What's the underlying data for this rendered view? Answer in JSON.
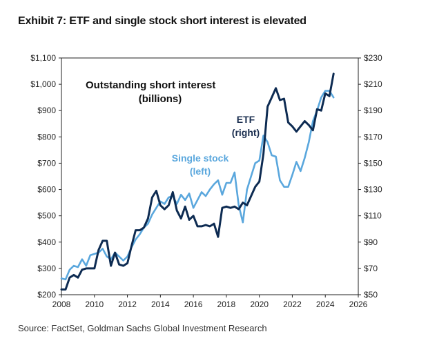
{
  "header": {
    "title": "Exhibit 7: ETF and single stock short interest is elevated"
  },
  "footer": {
    "source": "Source: FactSet, Goldman Sachs Global Investment Research"
  },
  "chart_data": {
    "type": "line",
    "title": "Outstanding short interest",
    "subtitle": "(billions)",
    "xlabel": "",
    "grid": false,
    "xlim": [
      2008,
      2026
    ],
    "x_ticks": [
      "2008",
      "2010",
      "2012",
      "2014",
      "2016",
      "2018",
      "2020",
      "2022",
      "2024",
      "2026"
    ],
    "y_left": {
      "lim": [
        200,
        1100
      ],
      "ticks": [
        "$200",
        "$300",
        "$400",
        "$500",
        "$600",
        "$700",
        "$800",
        "$900",
        "$1,000",
        "$1,100"
      ]
    },
    "y_right": {
      "lim": [
        50,
        230
      ],
      "ticks": [
        "$50",
        "$70",
        "$90",
        "$110",
        "$130",
        "$150",
        "$170",
        "$190",
        "$210",
        "$230"
      ]
    },
    "series": [
      {
        "name": "Single stock",
        "label_line1": "Single stock",
        "label_line2": "(left)",
        "axis": "left",
        "color": "#5aa7dd",
        "x": [
          2008,
          2008.25,
          2008.5,
          2008.75,
          2009,
          2009.25,
          2009.5,
          2009.75,
          2010,
          2010.25,
          2010.5,
          2010.75,
          2011,
          2011.25,
          2011.5,
          2011.75,
          2012,
          2012.25,
          2012.5,
          2012.75,
          2013,
          2013.25,
          2013.5,
          2013.75,
          2014,
          2014.25,
          2014.5,
          2014.75,
          2015,
          2015.25,
          2015.5,
          2015.75,
          2016,
          2016.25,
          2016.5,
          2016.75,
          2017,
          2017.25,
          2017.5,
          2017.75,
          2018,
          2018.25,
          2018.5,
          2018.75,
          2019,
          2019.25,
          2019.5,
          2019.75,
          2020,
          2020.25,
          2020.5,
          2020.75,
          2021,
          2021.25,
          2021.5,
          2021.75,
          2022,
          2022.25,
          2022.5,
          2022.75,
          2023,
          2023.25,
          2023.5,
          2023.75,
          2024,
          2024.25,
          2024.5
        ],
        "values": [
          262,
          258,
          295,
          310,
          305,
          335,
          310,
          350,
          355,
          360,
          375,
          345,
          335,
          360,
          345,
          330,
          345,
          380,
          410,
          430,
          455,
          470,
          505,
          530,
          555,
          545,
          570,
          575,
          545,
          580,
          560,
          585,
          530,
          560,
          590,
          575,
          600,
          620,
          635,
          580,
          625,
          625,
          665,
          540,
          475,
          600,
          650,
          700,
          710,
          805,
          780,
          730,
          725,
          635,
          610,
          610,
          655,
          705,
          670,
          720,
          780,
          860,
          900,
          950,
          975,
          975,
          950
        ]
      },
      {
        "name": "ETF",
        "label_line1": "ETF",
        "label_line2": "(right)",
        "axis": "right",
        "color": "#0d2b52",
        "x": [
          2008,
          2008.25,
          2008.5,
          2008.75,
          2009,
          2009.25,
          2009.5,
          2009.75,
          2010,
          2010.25,
          2010.5,
          2010.75,
          2011,
          2011.25,
          2011.5,
          2011.75,
          2012,
          2012.25,
          2012.5,
          2012.75,
          2013,
          2013.25,
          2013.5,
          2013.75,
          2014,
          2014.25,
          2014.5,
          2014.75,
          2015,
          2015.25,
          2015.5,
          2015.75,
          2016,
          2016.25,
          2016.5,
          2016.75,
          2017,
          2017.25,
          2017.5,
          2017.75,
          2018,
          2018.25,
          2018.5,
          2018.75,
          2019,
          2019.25,
          2019.5,
          2019.75,
          2020,
          2020.25,
          2020.5,
          2020.75,
          2021,
          2021.25,
          2021.5,
          2021.75,
          2022,
          2022.25,
          2022.5,
          2022.75,
          2023,
          2023.25,
          2023.5,
          2023.75,
          2024,
          2024.25,
          2024.5
        ],
        "values": [
          54,
          54,
          63,
          65,
          63,
          69,
          70,
          70,
          70,
          84,
          91,
          91,
          72,
          82,
          73,
          72,
          74,
          87,
          99,
          99,
          101,
          108,
          124,
          129,
          118,
          115,
          118,
          128,
          114,
          108,
          117,
          107,
          110,
          102,
          102,
          103,
          102,
          104,
          94,
          116,
          117,
          116,
          117,
          115,
          120,
          118,
          125,
          132,
          136,
          157,
          193,
          200,
          207,
          198,
          199,
          181,
          178,
          174,
          178,
          182,
          179,
          175,
          191,
          190,
          203,
          201,
          218
        ]
      }
    ]
  }
}
